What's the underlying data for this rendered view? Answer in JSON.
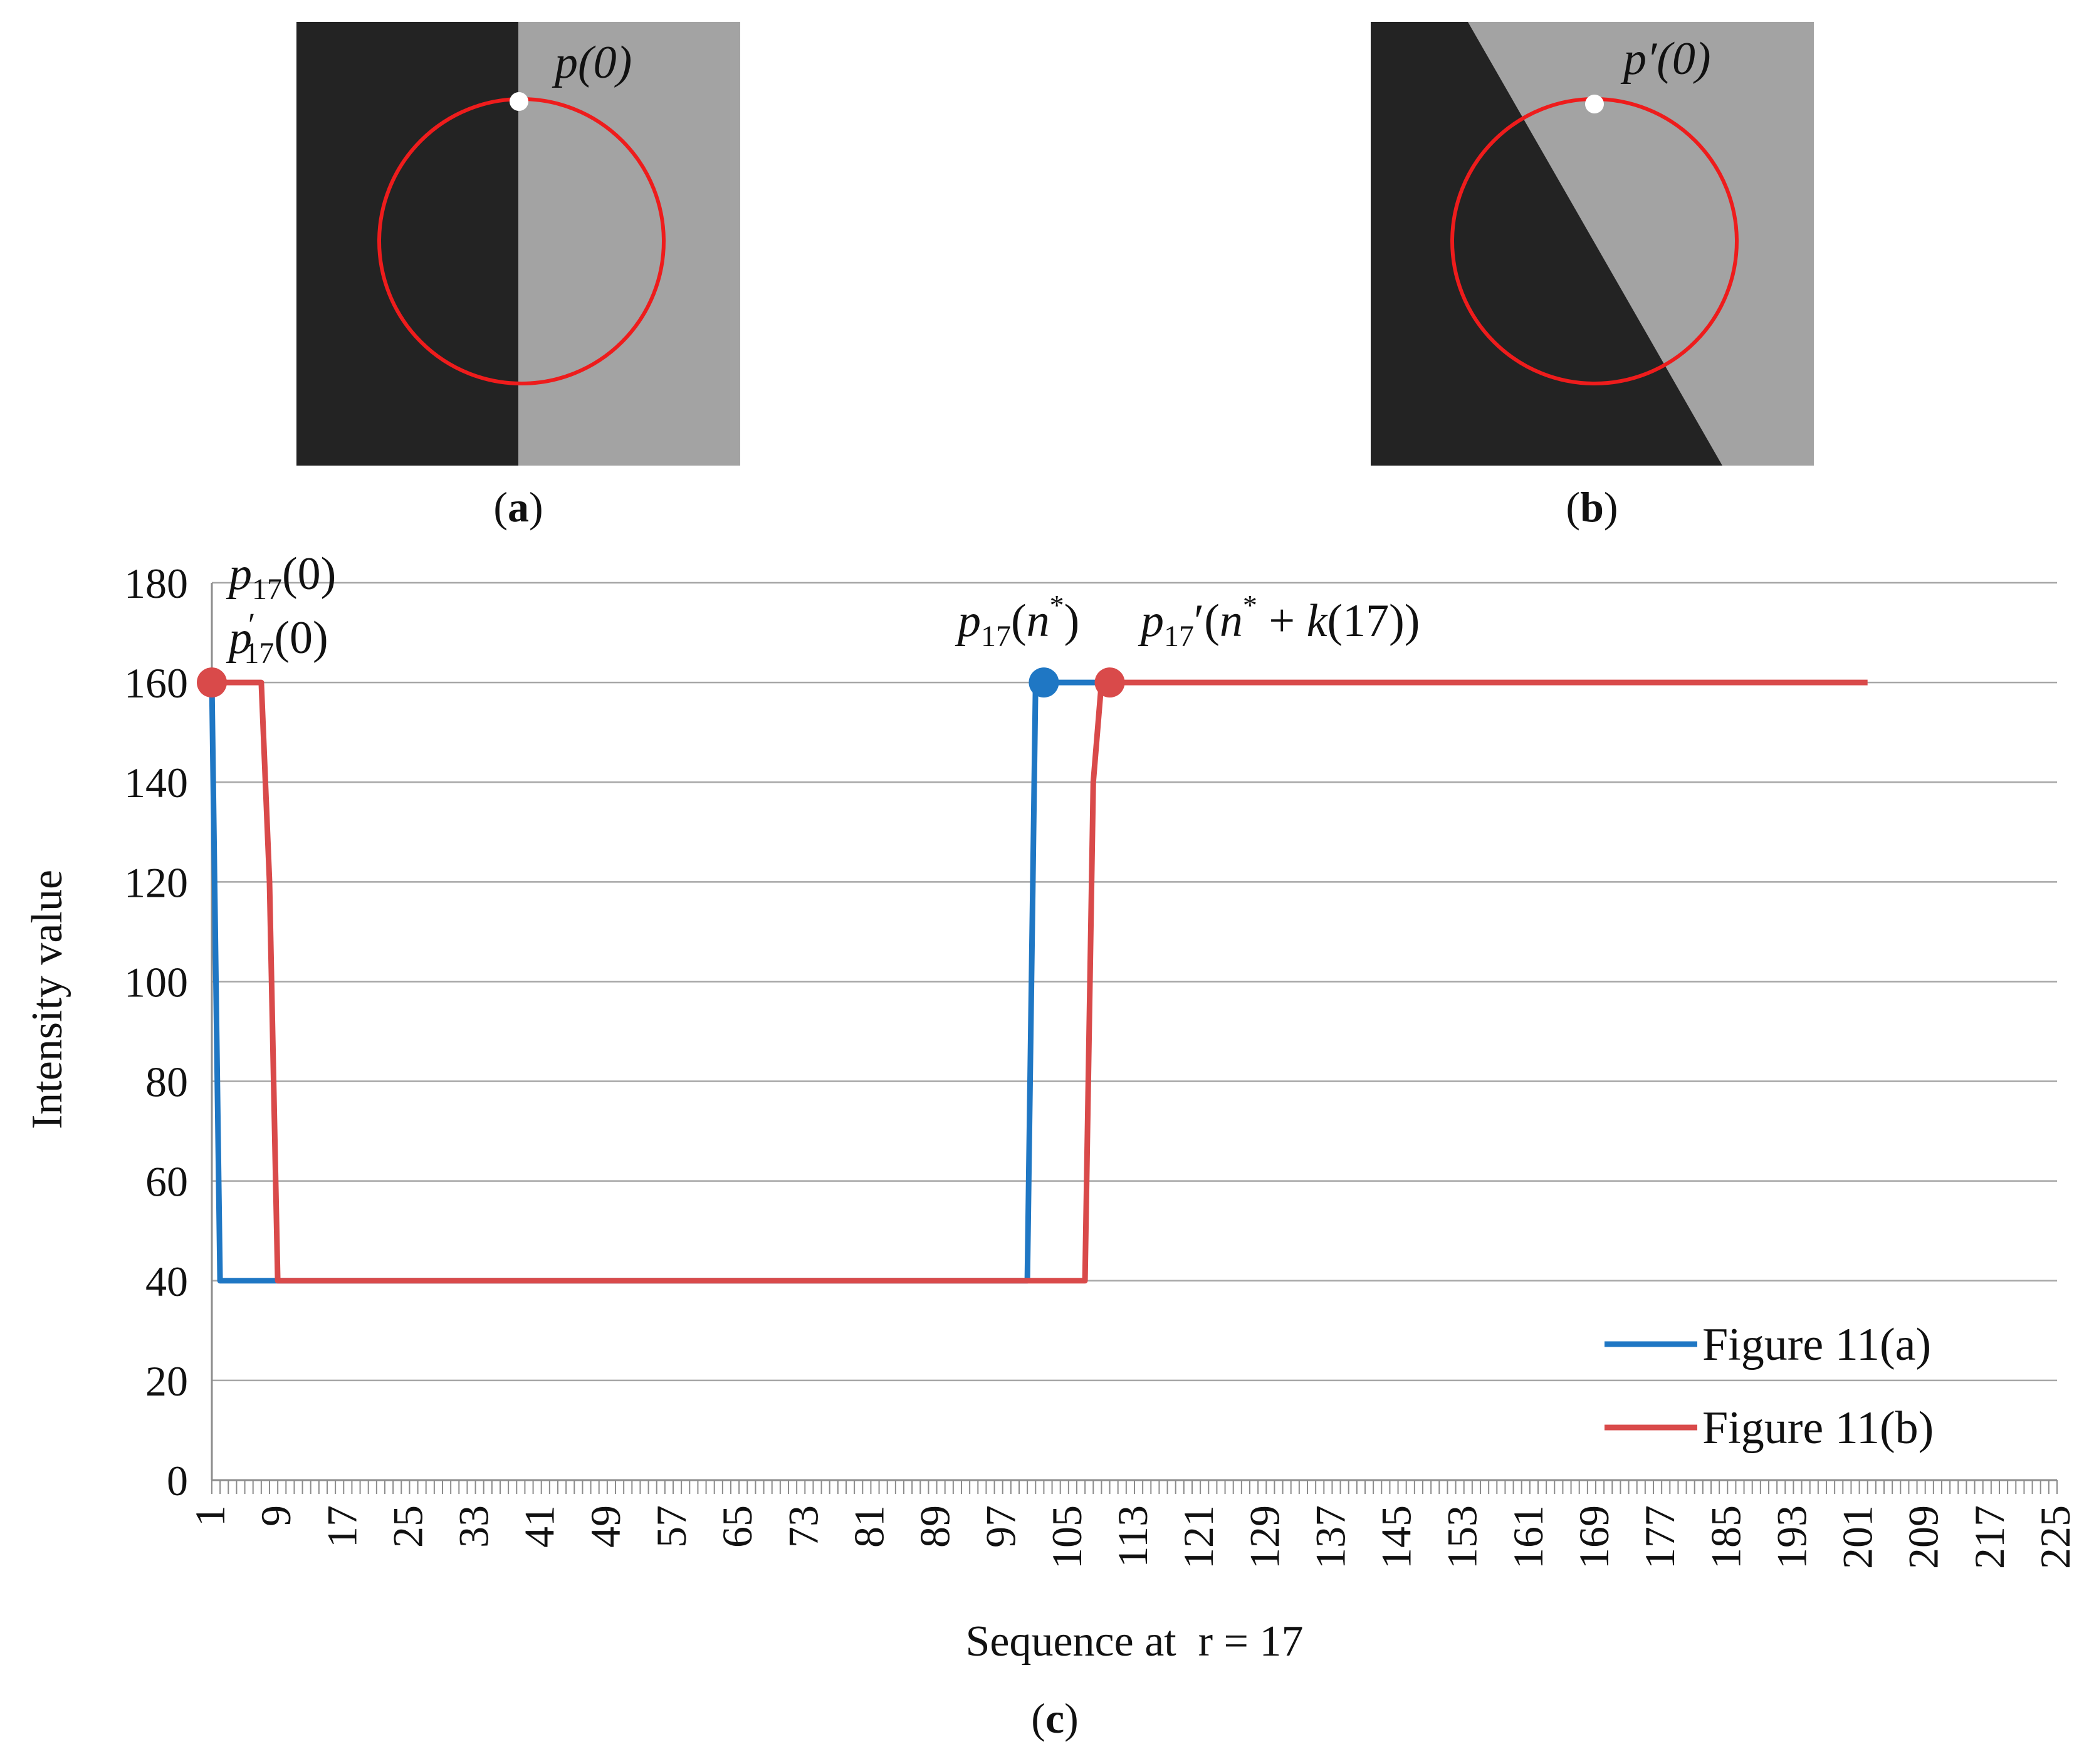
{
  "panel_a": {
    "label_open": "(",
    "label_letter": "a",
    "label_close": ")",
    "point_label": "p(0)",
    "left_color": "#232323",
    "right_color": "#a3a3a3"
  },
  "panel_b": {
    "label_open": "(",
    "label_letter": "b",
    "label_close": ")",
    "point_label": "p′(0)",
    "left_color": "#232323",
    "right_color": "#a3a3a3"
  },
  "panel_c": {
    "label_open": "(",
    "label_letter": "c",
    "label_close": ")"
  },
  "circle_color": "#ee1c1c",
  "chart_data": {
    "type": "line",
    "xlabel": "Sequence at  r = 17",
    "ylabel": "Intensity value",
    "ylim": [
      0,
      180
    ],
    "yticks": [
      0,
      20,
      40,
      60,
      80,
      100,
      120,
      140,
      160,
      180
    ],
    "xlim": [
      1,
      225
    ],
    "xticks": [
      1,
      9,
      17,
      25,
      33,
      41,
      49,
      57,
      65,
      73,
      81,
      89,
      97,
      105,
      113,
      121,
      129,
      137,
      145,
      153,
      161,
      169,
      177,
      185,
      193,
      201,
      209,
      217,
      225
    ],
    "grid": "horizontal",
    "legend_position": "bottom-right",
    "series": [
      {
        "name": "Figure 11(a)",
        "color": "#1f77c4",
        "x": [
          1,
          2,
          3,
          4,
          5,
          6,
          7,
          8,
          9,
          10,
          100,
          101,
          102,
          103,
          104,
          105,
          106,
          107,
          108,
          109
        ],
        "y": [
          160,
          40,
          40,
          40,
          40,
          40,
          40,
          40,
          40,
          40,
          40,
          160,
          160,
          160,
          160,
          160,
          160,
          160,
          160,
          160
        ]
      },
      {
        "name": "Figure 11(b)",
        "color": "#d94a4a",
        "x": [
          1,
          2,
          3,
          4,
          5,
          6,
          7,
          8,
          9,
          10,
          107,
          108,
          109,
          110,
          150,
          200,
          202
        ],
        "y": [
          160,
          160,
          160,
          160,
          160,
          160,
          160,
          120,
          40,
          40,
          40,
          140,
          160,
          160,
          160,
          160,
          160
        ]
      }
    ],
    "markers": [
      {
        "x": 1,
        "y": 160,
        "color": "#d94a4a"
      },
      {
        "x": 102,
        "y": 160,
        "color": "#1f77c4"
      },
      {
        "x": 110,
        "y": 160,
        "color": "#d94a4a"
      }
    ],
    "annotations": {
      "p17_0": "p17(0)",
      "p17prime_0": "p′17(0)",
      "p17_nstar": "p17(n*)",
      "p17prime_nstar_k": "p17′(n* + k(17))"
    }
  }
}
